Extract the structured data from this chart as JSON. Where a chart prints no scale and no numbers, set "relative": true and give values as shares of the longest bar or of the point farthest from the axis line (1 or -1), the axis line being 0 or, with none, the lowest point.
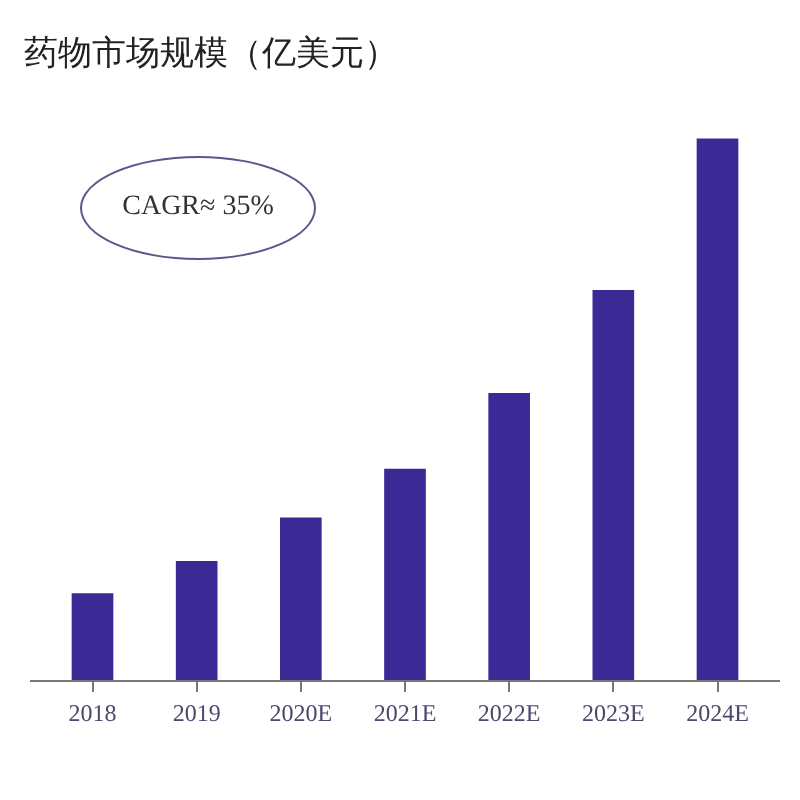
{
  "chart_data": {
    "type": "bar",
    "title": "药物市场规模（亿美元）",
    "relative": true,
    "categories": [
      "2018",
      "2019",
      "2020E",
      "2021E",
      "2022E",
      "2023E",
      "2024E"
    ],
    "values": [
      0.16,
      0.22,
      0.3,
      0.39,
      0.53,
      0.72,
      1
    ],
    "color": "#3b2a96",
    "annotations": [
      "CAGR≈ 35%"
    ],
    "grid": false
  }
}
